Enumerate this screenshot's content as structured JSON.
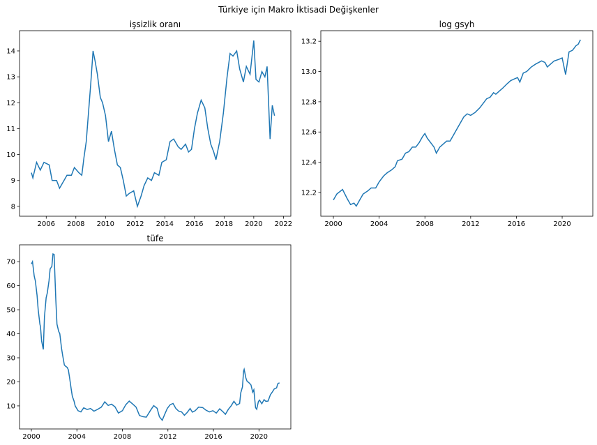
{
  "title": "Türkiye için Makro İktisadi Değişkenler",
  "chart_data": [
    {
      "type": "line",
      "title": "işsizlik oranı",
      "color": "#1f77b4",
      "xlim": [
        2004.2,
        2022.5
      ],
      "xticks": [
        2006,
        2008,
        2010,
        2012,
        2014,
        2016,
        2018,
        2020,
        2022
      ],
      "ylim": [
        7.62,
        14.78
      ],
      "yticks": [
        8,
        9,
        10,
        11,
        12,
        13,
        14
      ],
      "x": [
        2005.0,
        2005.1,
        2005.35,
        2005.6,
        2005.85,
        2006.2,
        2006.4,
        2006.7,
        2006.9,
        2007.2,
        2007.4,
        2007.7,
        2007.9,
        2008.2,
        2008.4,
        2008.55,
        2008.7,
        2008.85,
        2009.0,
        2009.16,
        2009.3,
        2009.45,
        2009.65,
        2009.8,
        2010.0,
        2010.2,
        2010.4,
        2010.6,
        2010.8,
        2011.0,
        2011.2,
        2011.4,
        2011.6,
        2011.9,
        2012.15,
        2012.4,
        2012.6,
        2012.85,
        2013.1,
        2013.3,
        2013.6,
        2013.8,
        2014.1,
        2014.35,
        2014.6,
        2014.9,
        2015.1,
        2015.4,
        2015.6,
        2015.8,
        2016.0,
        2016.2,
        2016.45,
        2016.7,
        2016.9,
        2017.1,
        2017.3,
        2017.45,
        2017.7,
        2017.95,
        2018.2,
        2018.4,
        2018.6,
        2018.85,
        2019.05,
        2019.3,
        2019.5,
        2019.75,
        2020.0,
        2020.15,
        2020.35,
        2020.55,
        2020.75,
        2020.9,
        2021.1,
        2021.25,
        2021.4
      ],
      "values": [
        9.3,
        9.1,
        9.7,
        9.4,
        9.7,
        9.6,
        9.0,
        9.0,
        8.7,
        9.0,
        9.2,
        9.2,
        9.5,
        9.3,
        9.2,
        9.9,
        10.5,
        11.6,
        12.7,
        14.0,
        13.6,
        13.1,
        12.2,
        12.0,
        11.5,
        10.5,
        10.9,
        10.2,
        9.6,
        9.5,
        9.0,
        8.4,
        8.5,
        8.6,
        8.0,
        8.4,
        8.8,
        9.1,
        9.0,
        9.3,
        9.2,
        9.7,
        9.8,
        10.5,
        10.6,
        10.3,
        10.2,
        10.4,
        10.1,
        10.2,
        11.0,
        11.6,
        12.1,
        11.8,
        11.0,
        10.4,
        10.1,
        9.8,
        10.5,
        11.6,
        13.0,
        13.9,
        13.8,
        14.0,
        13.3,
        12.8,
        13.4,
        13.1,
        14.4,
        12.9,
        12.8,
        13.2,
        13.0,
        13.4,
        10.6,
        11.9,
        11.5
      ]
    },
    {
      "type": "line",
      "title": "log gsyh",
      "color": "#1f77b4",
      "xlim": [
        1998.9,
        2022.68
      ],
      "xticks": [
        2000,
        2004,
        2008,
        2012,
        2016,
        2020
      ],
      "ylim": [
        12.043,
        13.27
      ],
      "yticks": [
        12.2,
        12.4,
        12.6,
        12.8,
        {
          "value": 13,
          "label": "13.0"
        },
        13.2
      ],
      "x": [
        2000.0,
        2000.3,
        2000.8,
        2001.2,
        2001.5,
        2001.8,
        2002.0,
        2002.3,
        2002.6,
        2003.0,
        2003.3,
        2003.7,
        2004.0,
        2004.4,
        2004.7,
        2005.1,
        2005.4,
        2005.6,
        2006.0,
        2006.3,
        2006.6,
        2006.9,
        2007.2,
        2007.5,
        2007.8,
        2008.0,
        2008.2,
        2008.5,
        2008.8,
        2009.0,
        2009.3,
        2009.6,
        2009.9,
        2010.2,
        2010.5,
        2010.8,
        2011.1,
        2011.4,
        2011.7,
        2012.0,
        2012.4,
        2012.8,
        2013.1,
        2013.4,
        2013.7,
        2014.0,
        2014.2,
        2014.5,
        2014.8,
        2015.2,
        2015.5,
        2015.8,
        2016.1,
        2016.3,
        2016.6,
        2016.9,
        2017.3,
        2017.7,
        2018.2,
        2018.5,
        2018.7,
        2019.0,
        2019.3,
        2019.7,
        2020.0,
        2020.3,
        2020.6,
        2020.9,
        2021.2,
        2021.4,
        2021.6
      ],
      "values": [
        12.15,
        12.19,
        12.22,
        12.16,
        12.12,
        12.13,
        12.11,
        12.15,
        12.19,
        12.21,
        12.23,
        12.23,
        12.27,
        12.31,
        12.33,
        12.35,
        12.37,
        12.41,
        12.42,
        12.46,
        12.47,
        12.5,
        12.5,
        12.53,
        12.57,
        12.59,
        12.56,
        12.53,
        12.5,
        12.46,
        12.5,
        12.52,
        12.54,
        12.54,
        12.58,
        12.62,
        12.66,
        12.7,
        12.72,
        12.71,
        12.73,
        12.76,
        12.79,
        12.82,
        12.83,
        12.86,
        12.85,
        12.87,
        12.89,
        12.92,
        12.94,
        12.95,
        12.96,
        12.93,
        12.99,
        13.0,
        13.03,
        13.05,
        13.07,
        13.06,
        13.03,
        13.05,
        13.07,
        13.08,
        13.09,
        12.98,
        13.13,
        13.14,
        13.17,
        13.18,
        13.21
      ]
    },
    {
      "type": "line",
      "title": "tüfe",
      "color": "#1f77b4",
      "xlim": [
        1998.96,
        2022.8
      ],
      "xticks": [
        2000,
        2004,
        2008,
        2012,
        2016,
        2020
      ],
      "ylim": [
        0.4,
        77.0
      ],
      "yticks": [
        10,
        20,
        30,
        40,
        50,
        60,
        70
      ],
      "x": [
        2000.0,
        2000.1,
        2000.25,
        2000.35,
        2000.5,
        2000.6,
        2000.75,
        2000.8,
        2000.9,
        2001.05,
        2001.15,
        2001.3,
        2001.4,
        2001.55,
        2001.65,
        2001.8,
        2001.9,
        2002.0,
        2002.15,
        2002.25,
        2002.4,
        2002.5,
        2002.65,
        2002.75,
        2002.9,
        2003.0,
        2003.15,
        2003.25,
        2003.35,
        2003.5,
        2003.6,
        2003.75,
        2003.85,
        2004.1,
        2004.35,
        2004.6,
        2004.9,
        2005.2,
        2005.5,
        2005.8,
        2006.15,
        2006.45,
        2006.75,
        2007.05,
        2007.35,
        2007.65,
        2008.0,
        2008.3,
        2008.6,
        2008.9,
        2009.2,
        2009.5,
        2009.8,
        2010.1,
        2010.45,
        2010.75,
        2011.05,
        2011.25,
        2011.5,
        2011.7,
        2011.95,
        2012.2,
        2012.45,
        2012.7,
        2012.95,
        2013.2,
        2013.45,
        2013.7,
        2013.95,
        2014.15,
        2014.4,
        2014.7,
        2015.05,
        2015.35,
        2015.65,
        2015.95,
        2016.25,
        2016.55,
        2016.85,
        2017.05,
        2017.3,
        2017.55,
        2017.8,
        2018.05,
        2018.3,
        2018.4,
        2018.55,
        2018.65,
        2018.7,
        2018.85,
        2018.95,
        2019.15,
        2019.3,
        2019.45,
        2019.55,
        2019.7,
        2019.8,
        2019.95,
        2020.05,
        2020.25,
        2020.45,
        2020.6,
        2020.8,
        2021.0,
        2021.15,
        2021.35,
        2021.55,
        2021.65,
        2021.8
      ],
      "values": [
        69,
        70,
        64,
        62,
        56,
        50,
        44,
        43,
        37,
        33.5,
        47,
        55,
        57,
        62,
        67,
        68,
        73.2,
        73,
        54,
        44,
        41,
        40,
        34,
        31,
        27,
        26.5,
        26,
        25,
        22,
        17,
        14,
        12,
        10,
        8,
        7.5,
        9.2,
        8.5,
        8.9,
        7.8,
        8.5,
        9.5,
        11.7,
        10.2,
        10.7,
        9.6,
        7.0,
        8.0,
        10.5,
        12.0,
        10.8,
        9.5,
        6.0,
        5.5,
        5.3,
        8.0,
        10.1,
        9.0,
        5.5,
        4.0,
        6.3,
        9.0,
        10.5,
        11.0,
        8.9,
        7.8,
        7.5,
        6.1,
        7.3,
        8.9,
        7.4,
        8.0,
        9.5,
        9.3,
        8.2,
        7.5,
        8.0,
        7.0,
        8.8,
        7.5,
        6.5,
        8.5,
        10.0,
        11.9,
        10.3,
        11.0,
        15.4,
        17.9,
        24.5,
        25.2,
        21.6,
        20.3,
        19.5,
        18.7,
        15.7,
        16.7,
        9.3,
        8.6,
        11.8,
        12.4,
        10.9,
        12.6,
        11.9,
        12.0,
        14.6,
        15.6,
        17.1,
        17.5,
        19.2,
        19.6
      ]
    }
  ]
}
